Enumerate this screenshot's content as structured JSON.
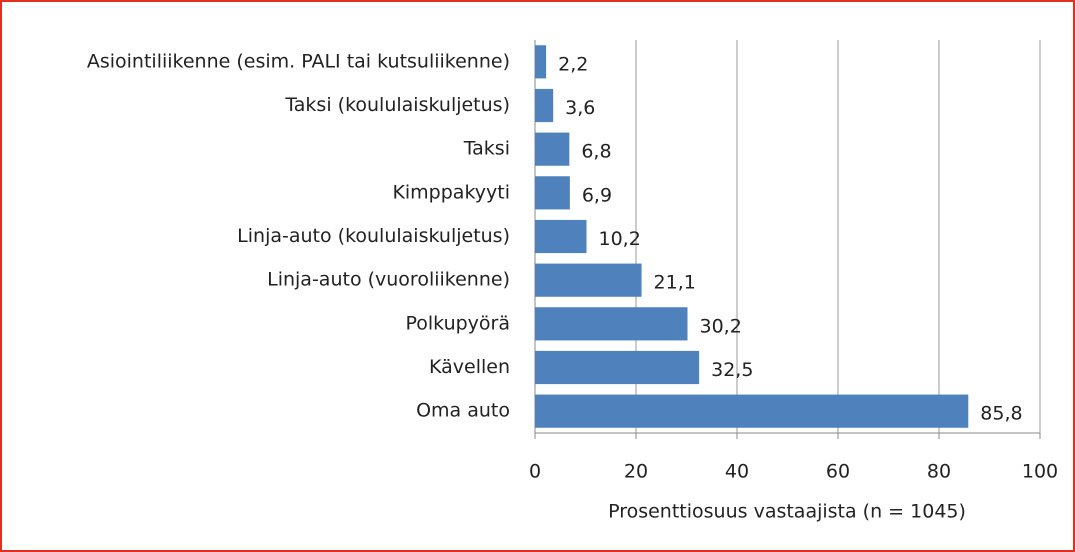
{
  "chart_data": {
    "type": "bar",
    "orientation": "horizontal",
    "categories": [
      "Asiointiliikenne (esim. PALI tai kutsuliikenne)",
      "Taksi (koululaiskuljetus)",
      "Taksi",
      "Kimppakyyti",
      "Linja-auto (koululaiskuljetus)",
      "Linja-auto (vuoroliikenne)",
      "Polkupyörä",
      "Kävellen",
      "Oma auto"
    ],
    "values": [
      2.2,
      3.6,
      6.8,
      6.9,
      10.2,
      21.1,
      30.2,
      32.5,
      85.8
    ],
    "value_labels": [
      "2,2",
      "3,6",
      "6,8",
      "6,9",
      "10,2",
      "21,1",
      "30,2",
      "32,5",
      "85,8"
    ],
    "color": "#4f81bd",
    "xlabel": "Prosenttiosuus vastaajista (n = 1045)",
    "xlim": [
      0,
      100
    ],
    "xticks": [
      0,
      20,
      40,
      60,
      80,
      100
    ],
    "grid": true
  }
}
